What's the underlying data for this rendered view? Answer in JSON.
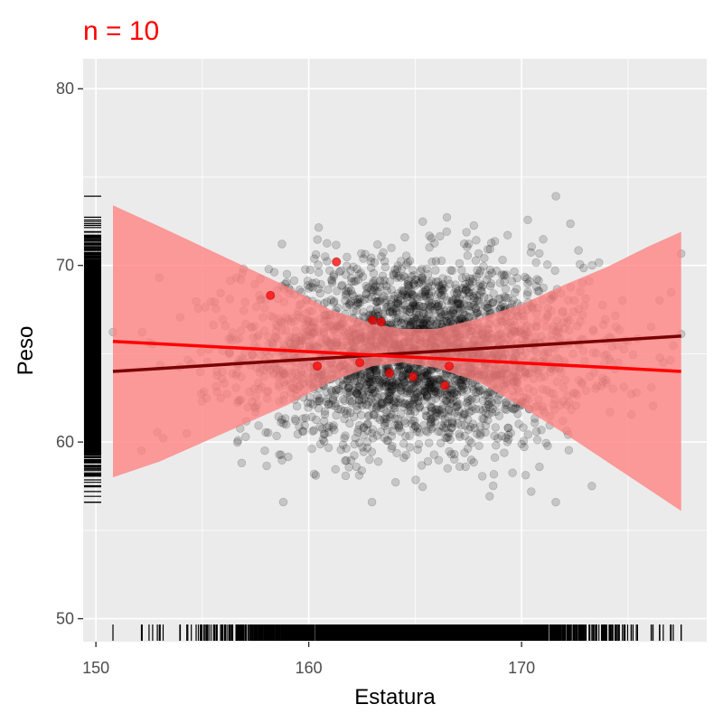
{
  "chart_data": {
    "type": "scatter",
    "title": "n = 10",
    "xlabel": "Estatura",
    "ylabel": "Peso",
    "xlim": [
      149.4,
      178.7
    ],
    "ylim": [
      48.7,
      81.7
    ],
    "x_ticks": [
      150,
      160,
      170
    ],
    "y_ticks": [
      50,
      60,
      70,
      80
    ],
    "x_tick_labels": [
      "150",
      "160",
      "170"
    ],
    "y_tick_labels": [
      "50",
      "60",
      "70",
      "80"
    ],
    "grid": true,
    "legend": "none",
    "background_population": {
      "description_free": true,
      "x_mean": 165,
      "x_sd": 4,
      "y_mean": 65,
      "y_sd": 2.6,
      "x_range": [
        150.8,
        177.5
      ],
      "y_range": [
        56.6,
        74.1
      ],
      "count": 3000
    },
    "sample_points": {
      "x": [
        158.2,
        161.3,
        163.0,
        163.4,
        160.4,
        162.4,
        163.8,
        164.9,
        166.4,
        166.6
      ],
      "y": [
        68.3,
        70.2,
        66.9,
        66.8,
        64.3,
        64.5,
        63.9,
        63.7,
        63.2,
        64.3
      ]
    },
    "population_fit": {
      "x": [
        150.8,
        177.5
      ],
      "y": [
        64.0,
        66.0
      ]
    },
    "sample_fit": {
      "x": [
        150.8,
        177.5
      ],
      "y": [
        65.7,
        64.0
      ]
    },
    "confidence_band": {
      "x": [
        150.8,
        153,
        156,
        159,
        161,
        163,
        164.4,
        166,
        168,
        170,
        172,
        174,
        176,
        177.5
      ],
      "lower": [
        58.0,
        58.9,
        60.5,
        62.1,
        63.4,
        64.3,
        64.5,
        64.2,
        63.4,
        62.0,
        60.5,
        58.9,
        57.3,
        56.1
      ],
      "upper": [
        73.4,
        72.2,
        70.5,
        68.8,
        67.5,
        66.7,
        66.4,
        66.4,
        67.0,
        67.8,
        68.9,
        69.9,
        71.1,
        71.9
      ]
    },
    "colors": {
      "panel": "#ebebeb",
      "grid": "#ffffff",
      "population_points": "#000000",
      "sample_points": "#ff0000",
      "population_line": "#7a0000",
      "sample_line": "#ff0000",
      "band": "#ff8080",
      "title": "#ff0000"
    }
  }
}
